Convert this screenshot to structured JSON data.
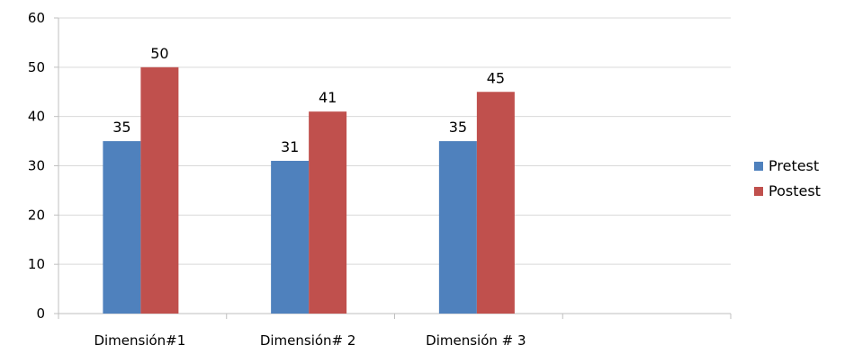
{
  "chart_data": {
    "type": "bar",
    "categories": [
      "Dimensión#1",
      "Dimensión# 2",
      "Dimensión # 3",
      ""
    ],
    "series": [
      {
        "name": "Pretest",
        "values": [
          35,
          31,
          35,
          null
        ],
        "color": "#4F81BD"
      },
      {
        "name": "Postest",
        "values": [
          50,
          41,
          45,
          null
        ],
        "color": "#C0504D"
      }
    ],
    "y_ticks": [
      "0",
      "10",
      "20",
      "30",
      "40",
      "50",
      "60"
    ],
    "ylim": [
      0,
      60
    ],
    "data_labels": true,
    "grid": true,
    "legend_position": "right",
    "gridline_color": "#D9D9D9",
    "axis_color": "#BFBFBF"
  }
}
